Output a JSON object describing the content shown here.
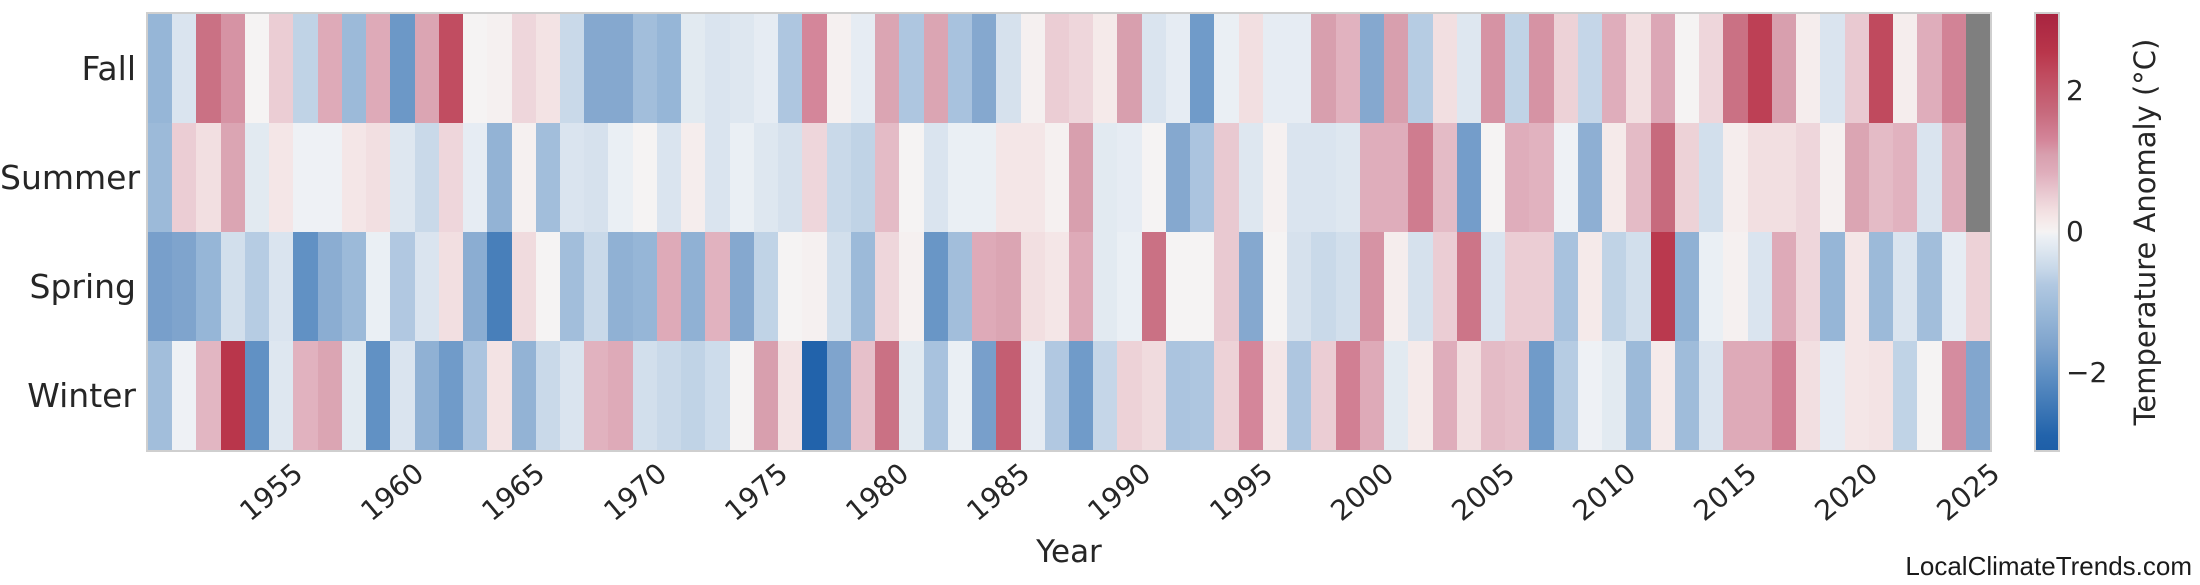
{
  "watermark": "LocalClimateTrends.com",
  "chart_data": {
    "type": "heatmap",
    "title": "",
    "xlabel": "Year",
    "ylabel": "",
    "year_start": 1950,
    "year_end": 2025,
    "xticks": [
      1955,
      1960,
      1965,
      1970,
      1975,
      1980,
      1985,
      1990,
      1995,
      2000,
      2005,
      2010,
      2015,
      2020,
      2025
    ],
    "rows": [
      "Fall",
      "Summer",
      "Spring",
      "Winter"
    ],
    "series": [
      {
        "name": "Fall",
        "values": [
          -1.2,
          -0.3,
          1.6,
          1.2,
          0,
          0.5,
          -0.6,
          0.9,
          -1.1,
          0.9,
          -1.85,
          1,
          2.2,
          0,
          0.05,
          0.4,
          0.25,
          -0.5,
          -1.5,
          -1.5,
          -1,
          -1.2,
          -0.2,
          -0.3,
          -0.25,
          -0.15,
          -0.8,
          1.3,
          0.05,
          -0.15,
          1,
          -0.8,
          1,
          -0.9,
          -1.5,
          -0.35,
          0.05,
          0.5,
          0.4,
          0.15,
          1.1,
          -0.3,
          -0.15,
          -1.8,
          -0.1,
          0.3,
          -0.15,
          -0.15,
          1.1,
          0.8,
          -1.5,
          1.1,
          -0.7,
          0.3,
          -0.25,
          1.2,
          -0.6,
          1.2,
          0.45,
          -0.55,
          0.85,
          0.3,
          0.95,
          0,
          0.4,
          1.6,
          2.4,
          1.1,
          0.1,
          -0.3,
          0.55,
          2.25,
          0.1,
          0.85,
          1.35,
          null
        ]
      },
      {
        "name": "Summer",
        "values": [
          -1.1,
          0.5,
          0.3,
          1,
          -0.2,
          0.2,
          -0.05,
          -0.05,
          0.2,
          0.3,
          -0.25,
          -0.5,
          0.4,
          -0.15,
          -1.25,
          0.05,
          -1,
          -0.3,
          -0.35,
          -0.1,
          0,
          -0.3,
          0.1,
          -0.3,
          -0.1,
          -0.25,
          -0.35,
          0.4,
          -0.5,
          -0.6,
          0.7,
          0,
          -0.3,
          -0.1,
          -0.1,
          0.2,
          0.2,
          0.05,
          1.1,
          -0.2,
          -0.15,
          0,
          -1.5,
          -0.85,
          0.55,
          -0.25,
          0.05,
          -0.3,
          -0.3,
          -0.25,
          0.85,
          0.85,
          1.45,
          0.7,
          -1.75,
          0,
          0.85,
          0.8,
          -0.05,
          -1.35,
          0.15,
          0.7,
          1.7,
          0.45,
          -0.4,
          0.1,
          0.3,
          0.3,
          0.4,
          0.05,
          1,
          0.7,
          0.8,
          -0.3,
          0.85,
          null
        ]
      },
      {
        "name": "Spring",
        "values": [
          -1.7,
          -1.6,
          -1.2,
          -0.4,
          -0.7,
          -0.3,
          -2,
          -1.4,
          -1.1,
          -0.1,
          -0.75,
          -0.3,
          0.3,
          -1.4,
          -2.35,
          0.35,
          0,
          -1,
          -0.5,
          -1.3,
          -1.2,
          0.9,
          -1.3,
          0.8,
          -1.5,
          -0.6,
          0,
          0.05,
          -0.4,
          -1.1,
          0.4,
          0.05,
          -1.9,
          -1,
          0.9,
          1,
          0.3,
          0.2,
          0.9,
          -0.2,
          -0.1,
          1.6,
          0,
          0,
          0.55,
          -1.5,
          0,
          -0.35,
          -0.5,
          -0.4,
          1.2,
          0.1,
          -0.35,
          0.5,
          1.55,
          -0.3,
          0.5,
          0.5,
          -0.9,
          0.15,
          -0.6,
          -0.4,
          2.5,
          -1.3,
          -0.1,
          0.05,
          -0.3,
          0.9,
          0.4,
          -1.2,
          0.2,
          -1.1,
          -0.3,
          -1,
          -0.15,
          0.45
        ]
      },
      {
        "name": "Winter",
        "values": [
          -1,
          -0.05,
          0.75,
          2.55,
          -2,
          -0.25,
          0.8,
          1,
          -0.2,
          -2,
          -0.3,
          -1.3,
          -1.8,
          -0.85,
          0.25,
          -1.25,
          -0.5,
          -0.3,
          0.8,
          0.9,
          -0.4,
          -0.5,
          -0.6,
          -0.45,
          0,
          1.1,
          0.25,
          -2.9,
          -1.6,
          0.65,
          1.6,
          -0.2,
          -0.9,
          -0.1,
          -1.7,
          1.9,
          -0.15,
          -0.75,
          -1.8,
          -0.55,
          0.45,
          0.35,
          -0.85,
          -0.8,
          0.45,
          1.3,
          0.2,
          -0.8,
          0.5,
          1.4,
          0.9,
          -0.2,
          0.15,
          0.85,
          0.3,
          0.7,
          0.65,
          -1.8,
          -0.7,
          -0.05,
          -0.2,
          -1.1,
          0.15,
          -1.05,
          -0.3,
          0.9,
          0.9,
          1.4,
          0.3,
          -0.15,
          0.2,
          0.25,
          -0.6,
          0,
          1.25,
          -1.55
        ]
      }
    ],
    "colorbar": {
      "label": "Temperature Anomaly (°C)",
      "vmin": -3.1,
      "vmax": 3.1,
      "ticks": [
        {
          "label": "2",
          "value": 2
        },
        {
          "label": "0",
          "value": 0
        },
        {
          "label": "−2",
          "value": -2
        }
      ]
    },
    "missing_color": "#7f7f7f",
    "grid": false,
    "colormap_stops": [
      [
        -3.1,
        "#1e5fa8"
      ],
      [
        -2.9,
        "#2263ab"
      ],
      [
        -2.0,
        "#6191c4"
      ],
      [
        -1.6,
        "#7fa4cd"
      ],
      [
        -1.1,
        "#9cbad9"
      ],
      [
        -0.75,
        "#b1c8e1"
      ],
      [
        -0.55,
        "#c5d6e8"
      ],
      [
        -0.25,
        "#dee7f0"
      ],
      [
        -0.05,
        "#eef1f5"
      ],
      [
        0.0,
        "#f5f3f3"
      ],
      [
        0.15,
        "#f5eaea"
      ],
      [
        0.3,
        "#f2dfe1"
      ],
      [
        0.55,
        "#e9c9d1"
      ],
      [
        0.85,
        "#dfadbb"
      ],
      [
        1.1,
        "#d89fae"
      ],
      [
        1.3,
        "#d4869a"
      ],
      [
        1.7,
        "#c76a7d"
      ],
      [
        2.25,
        "#c04a5e"
      ],
      [
        2.55,
        "#b9364b"
      ],
      [
        3.1,
        "#a82440"
      ]
    ]
  }
}
